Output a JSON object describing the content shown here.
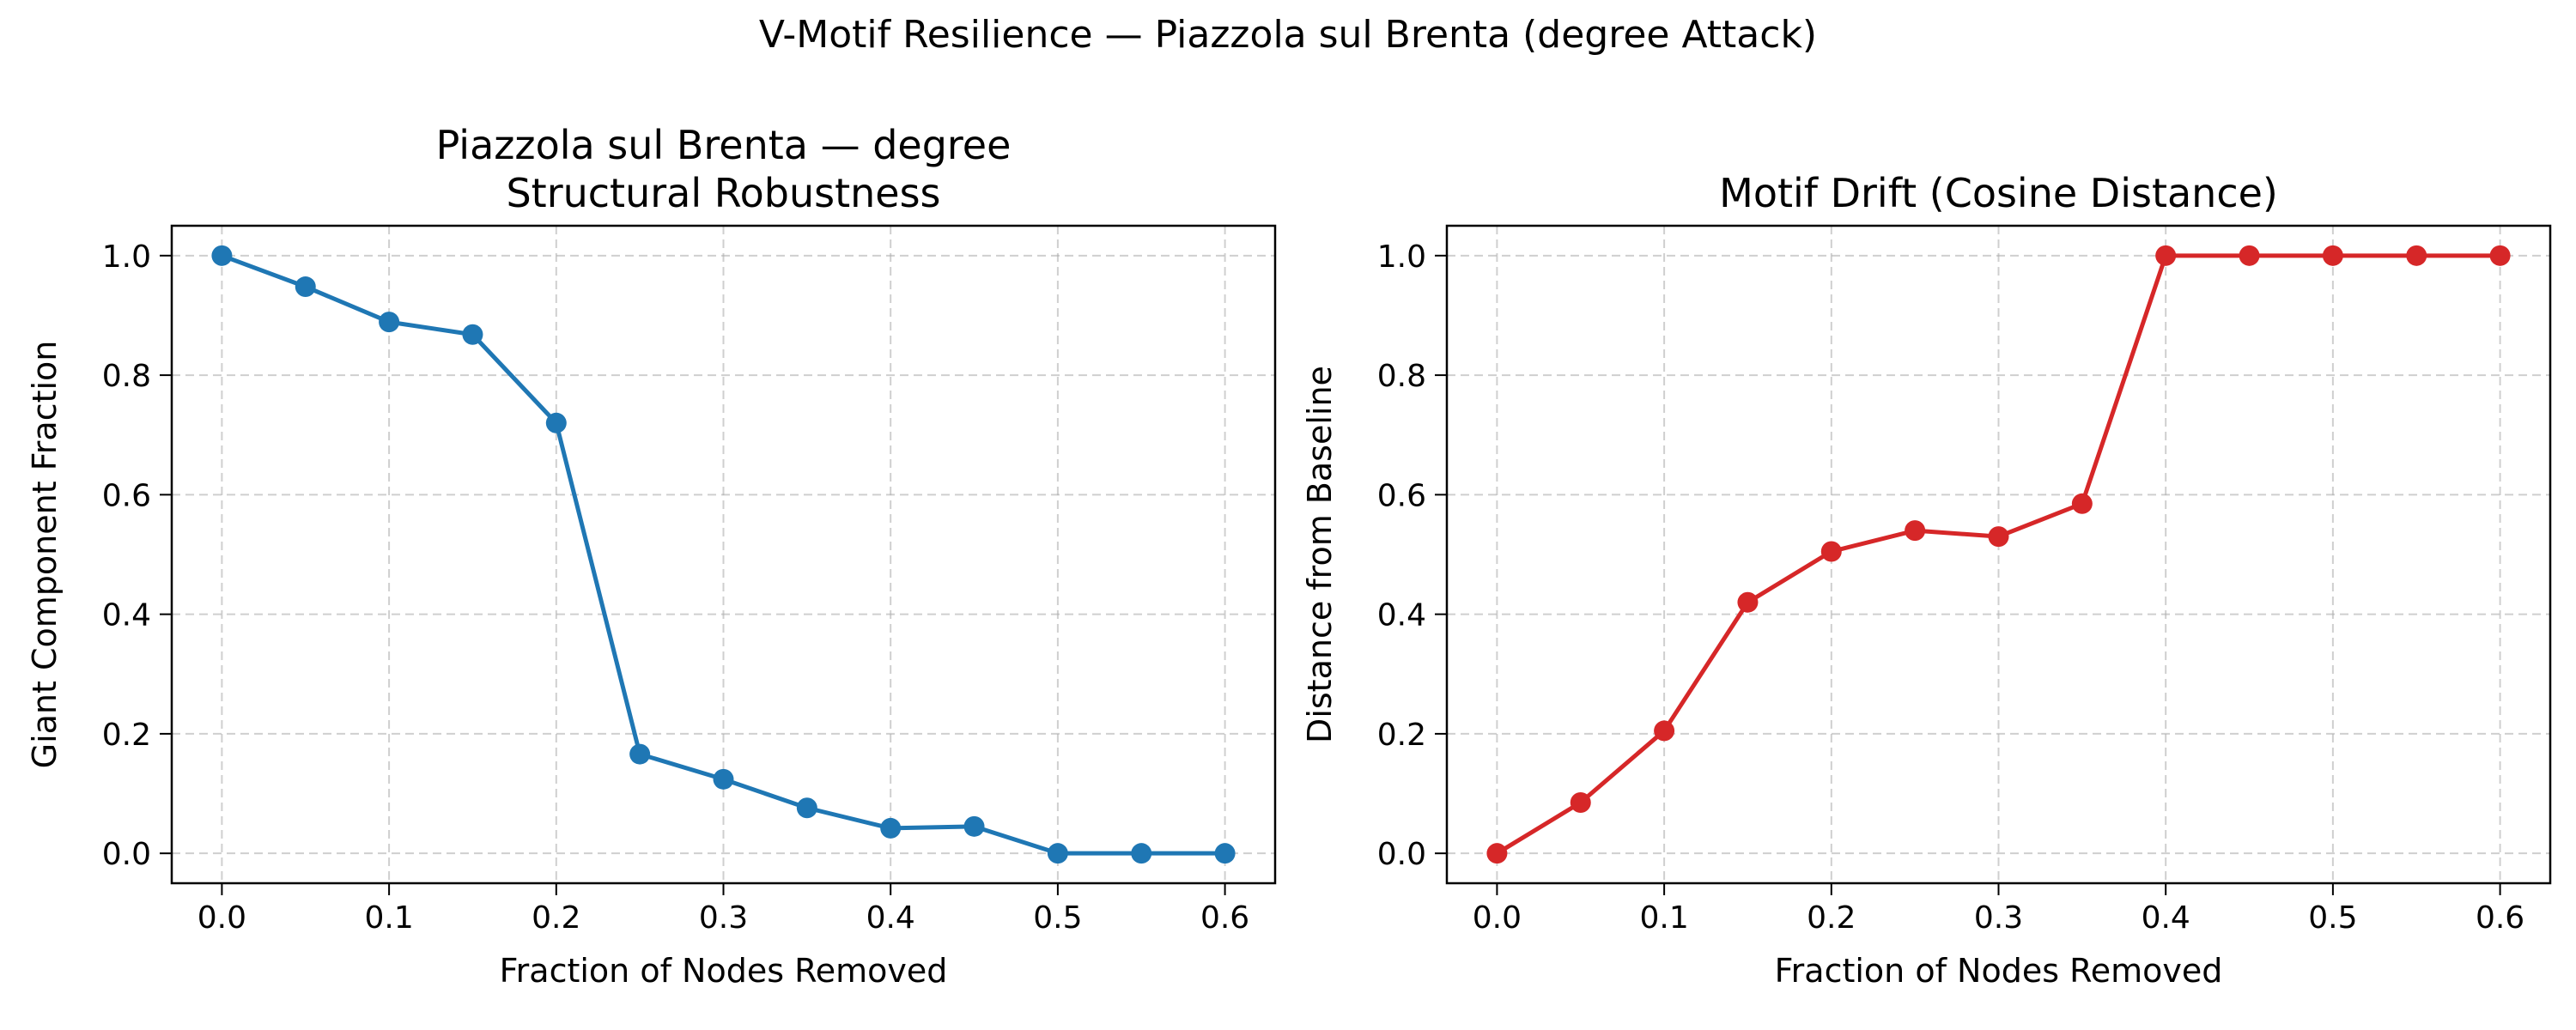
{
  "suptitle": "V-Motif Resilience — Piazzola sul Brenta (degree Attack)",
  "chart_data": [
    {
      "type": "line",
      "title": [
        "Piazzola sul Brenta — degree",
        "Structural Robustness"
      ],
      "xlabel": "Fraction of Nodes Removed",
      "ylabel": "Giant Component Fraction",
      "xlim": [
        -0.03,
        0.63
      ],
      "ylim": [
        -0.05,
        1.05
      ],
      "xticks": [
        0.0,
        0.1,
        0.2,
        0.3,
        0.4,
        0.5,
        0.6
      ],
      "yticks": [
        0.0,
        0.2,
        0.4,
        0.6,
        0.8,
        1.0
      ],
      "xtick_labels": [
        "0.0",
        "0.1",
        "0.2",
        "0.3",
        "0.4",
        "0.5",
        "0.6"
      ],
      "ytick_labels": [
        "0.0",
        "0.2",
        "0.4",
        "0.6",
        "0.8",
        "1.0"
      ],
      "grid": true,
      "series": [
        {
          "color": "#1f77b4",
          "marker": "circle",
          "x": [
            0.0,
            0.05,
            0.1,
            0.15,
            0.2,
            0.25,
            0.3,
            0.35,
            0.4,
            0.45,
            0.5,
            0.55,
            0.6
          ],
          "y": [
            1.0,
            0.948,
            0.889,
            0.868,
            0.72,
            0.166,
            0.124,
            0.076,
            0.042,
            0.045,
            0.0,
            0.0,
            0.0
          ]
        }
      ]
    },
    {
      "type": "line",
      "title": [
        "Motif Drift (Cosine Distance)"
      ],
      "xlabel": "Fraction of Nodes Removed",
      "ylabel": "Distance from Baseline",
      "xlim": [
        -0.03,
        0.63
      ],
      "ylim": [
        -0.05,
        1.05
      ],
      "xticks": [
        0.0,
        0.1,
        0.2,
        0.3,
        0.4,
        0.5,
        0.6
      ],
      "yticks": [
        0.0,
        0.2,
        0.4,
        0.6,
        0.8,
        1.0
      ],
      "xtick_labels": [
        "0.0",
        "0.1",
        "0.2",
        "0.3",
        "0.4",
        "0.5",
        "0.6"
      ],
      "ytick_labels": [
        "0.0",
        "0.2",
        "0.4",
        "0.6",
        "0.8",
        "1.0"
      ],
      "grid": true,
      "series": [
        {
          "color": "#d62728",
          "marker": "circle",
          "x": [
            0.0,
            0.05,
            0.1,
            0.15,
            0.2,
            0.25,
            0.3,
            0.35,
            0.4,
            0.45,
            0.5,
            0.55,
            0.6
          ],
          "y": [
            0.0,
            0.085,
            0.205,
            0.42,
            0.505,
            0.54,
            0.53,
            0.585,
            1.0,
            1.0,
            1.0,
            1.0,
            1.0
          ]
        }
      ]
    }
  ]
}
